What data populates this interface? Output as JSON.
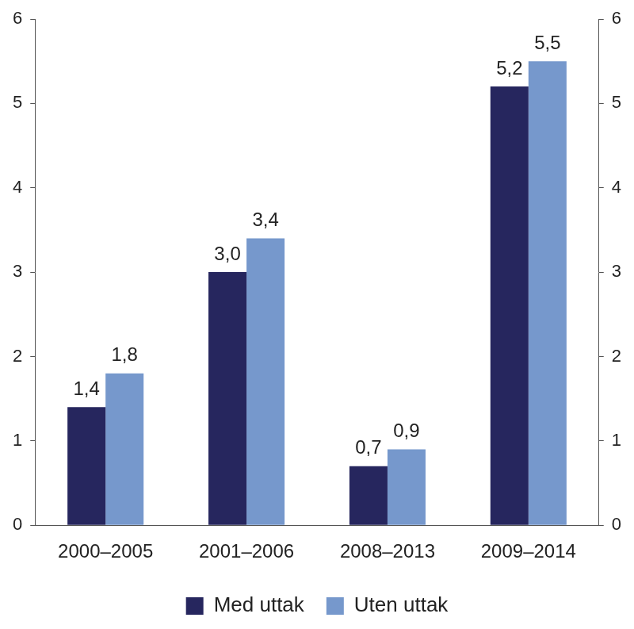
{
  "chart_data": {
    "type": "bar",
    "categories": [
      "2000–2005",
      "2001–2006",
      "2008–2013",
      "2009–2014"
    ],
    "series": [
      {
        "name": "Med uttak",
        "color": "#26265e",
        "values": [
          1.4,
          3.0,
          0.7,
          5.2
        ],
        "value_labels": [
          "1,4",
          "3,0",
          "0,7",
          "5,2"
        ]
      },
      {
        "name": "Uten uttak",
        "color": "#7698cc",
        "values": [
          1.8,
          3.4,
          0.9,
          5.5
        ],
        "value_labels": [
          "1,8",
          "3,4",
          "0,9",
          "5,5"
        ]
      }
    ],
    "ylim": [
      0,
      6
    ],
    "yticks": [
      0,
      1,
      2,
      3,
      4,
      5,
      6
    ],
    "y2lim": [
      0,
      6
    ],
    "y2ticks": [
      0,
      1,
      2,
      3,
      4,
      5,
      6
    ],
    "grid": false,
    "legend": "bottom",
    "data_labels": true
  }
}
